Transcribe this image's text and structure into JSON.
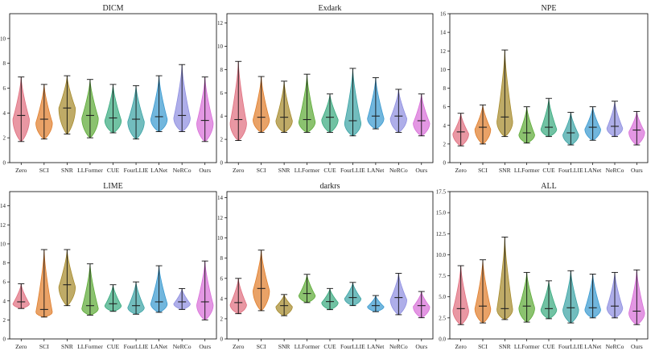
{
  "chart_data": [
    {
      "type": "violin",
      "title": "DICM",
      "ylim": [
        0,
        12
      ],
      "yticks": [
        0,
        2,
        4,
        6,
        8,
        10
      ],
      "categories": [
        "Zero",
        "SCI",
        "SNR",
        "LLFormer",
        "CUE",
        "FourLLIE",
        "LANet",
        "NeRCo",
        "Ours"
      ],
      "series": [
        {
          "name": "Zero",
          "min": 1.7,
          "max": 6.9,
          "median": 3.8,
          "peak": 3.5
        },
        {
          "name": "SCI",
          "min": 1.9,
          "max": 6.3,
          "median": 3.5,
          "peak": 3.2
        },
        {
          "name": "SNR",
          "min": 2.3,
          "max": 7.0,
          "median": 4.4,
          "peak": 4.4
        },
        {
          "name": "LLFormer",
          "min": 2.0,
          "max": 6.7,
          "median": 3.8,
          "peak": 3.6
        },
        {
          "name": "CUE",
          "min": 2.4,
          "max": 6.3,
          "median": 3.6,
          "peak": 3.4
        },
        {
          "name": "FourLLIE",
          "min": 1.9,
          "max": 6.2,
          "median": 3.5,
          "peak": 3.3
        },
        {
          "name": "LANet",
          "min": 2.5,
          "max": 7.0,
          "median": 3.7,
          "peak": 3.5
        },
        {
          "name": "NeRCo",
          "min": 2.5,
          "max": 7.9,
          "median": 3.8,
          "peak": 3.6
        },
        {
          "name": "Ours",
          "min": 1.7,
          "max": 6.9,
          "median": 3.4,
          "peak": 3.2
        }
      ]
    },
    {
      "type": "violin",
      "title": "Exdark",
      "ylim": [
        0,
        12.8
      ],
      "yticks": [
        0,
        2,
        4,
        6,
        8,
        10,
        12
      ],
      "categories": [
        "Zero",
        "SCI",
        "SNR",
        "LLFormer",
        "CUE",
        "FourLLIE",
        "LANet",
        "NeRCo",
        "Ours"
      ],
      "series": [
        {
          "name": "Zero",
          "min": 1.9,
          "max": 8.7,
          "median": 3.7,
          "peak": 3.4
        },
        {
          "name": "SCI",
          "min": 2.6,
          "max": 7.4,
          "median": 3.9,
          "peak": 3.7
        },
        {
          "name": "SNR",
          "min": 2.6,
          "max": 7.0,
          "median": 3.9,
          "peak": 3.6
        },
        {
          "name": "LLFormer",
          "min": 2.6,
          "max": 7.6,
          "median": 3.7,
          "peak": 3.5
        },
        {
          "name": "CUE",
          "min": 2.6,
          "max": 5.9,
          "median": 3.9,
          "peak": 3.7
        },
        {
          "name": "FourLLIE",
          "min": 2.3,
          "max": 8.1,
          "median": 3.6,
          "peak": 3.4
        },
        {
          "name": "LANet",
          "min": 2.9,
          "max": 7.3,
          "median": 4.0,
          "peak": 3.8
        },
        {
          "name": "NeRCo",
          "min": 2.6,
          "max": 6.3,
          "median": 4.0,
          "peak": 3.8
        },
        {
          "name": "Ours",
          "min": 2.3,
          "max": 5.9,
          "median": 3.6,
          "peak": 3.4
        }
      ]
    },
    {
      "type": "violin",
      "title": "NPE",
      "ylim": [
        0,
        16
      ],
      "yticks": [
        0,
        2,
        4,
        6,
        8,
        10,
        12,
        14,
        16
      ],
      "categories": [
        "Zero",
        "SCI",
        "SNR",
        "LLFormer",
        "CUE",
        "FourLLIE",
        "LANet",
        "NeRCo",
        "Ours"
      ],
      "series": [
        {
          "name": "Zero",
          "min": 1.8,
          "max": 5.3,
          "median": 3.3,
          "peak": 3.1
        },
        {
          "name": "SCI",
          "min": 2.0,
          "max": 6.2,
          "median": 3.8,
          "peak": 3.6
        },
        {
          "name": "SNR",
          "min": 2.8,
          "max": 12.1,
          "median": 4.9,
          "peak": 4.4
        },
        {
          "name": "LLFormer",
          "min": 2.1,
          "max": 6.0,
          "median": 3.2,
          "peak": 3.0
        },
        {
          "name": "CUE",
          "min": 2.8,
          "max": 6.9,
          "median": 3.8,
          "peak": 3.6
        },
        {
          "name": "FourLLIE",
          "min": 1.9,
          "max": 5.4,
          "median": 3.2,
          "peak": 3.0
        },
        {
          "name": "LANet",
          "min": 2.4,
          "max": 6.0,
          "median": 3.8,
          "peak": 3.6
        },
        {
          "name": "NeRCo",
          "min": 2.8,
          "max": 6.6,
          "median": 3.9,
          "peak": 3.7
        },
        {
          "name": "Ours",
          "min": 1.9,
          "max": 5.5,
          "median": 3.5,
          "peak": 3.3
        }
      ]
    },
    {
      "type": "violin",
      "title": "LIME",
      "ylim": [
        0,
        15.5
      ],
      "yticks": [
        0,
        2,
        4,
        6,
        8,
        10,
        12,
        14
      ],
      "categories": [
        "Zero",
        "SCI",
        "SNR",
        "LLFormer",
        "CUE",
        "FourLLIE",
        "LANet",
        "NeRCo",
        "Ours"
      ],
      "series": [
        {
          "name": "Zero",
          "min": 3.2,
          "max": 5.8,
          "median": 3.9,
          "peak": 3.7
        },
        {
          "name": "SCI",
          "min": 2.3,
          "max": 9.4,
          "median": 3.1,
          "peak": 2.8
        },
        {
          "name": "SNR",
          "min": 3.5,
          "max": 9.4,
          "median": 5.7,
          "peak": 5.5
        },
        {
          "name": "LLFormer",
          "min": 2.5,
          "max": 7.9,
          "median": 3.5,
          "peak": 3.2
        },
        {
          "name": "CUE",
          "min": 2.9,
          "max": 5.7,
          "median": 3.7,
          "peak": 3.5
        },
        {
          "name": "FourLLIE",
          "min": 2.6,
          "max": 6.0,
          "median": 3.5,
          "peak": 3.3
        },
        {
          "name": "LANet",
          "min": 2.8,
          "max": 7.7,
          "median": 3.9,
          "peak": 3.7
        },
        {
          "name": "NeRCo",
          "min": 3.1,
          "max": 5.3,
          "median": 3.9,
          "peak": 3.7
        },
        {
          "name": "Ours",
          "min": 2.0,
          "max": 8.2,
          "median": 3.9,
          "peak": 3.6
        }
      ]
    },
    {
      "type": "violin",
      "title": "darkrs",
      "ylim": [
        0,
        14.6
      ],
      "yticks": [
        0,
        2,
        4,
        6,
        8,
        10,
        12,
        14
      ],
      "categories": [
        "Zero",
        "SCI",
        "SNR",
        "LLFormer",
        "CUE",
        "FourLLIE",
        "LANet",
        "NeRCo",
        "Ours"
      ],
      "series": [
        {
          "name": "Zero",
          "min": 2.5,
          "max": 6.0,
          "median": 3.6,
          "peak": 3.4
        },
        {
          "name": "SCI",
          "min": 2.8,
          "max": 8.8,
          "median": 5.0,
          "peak": 4.8
        },
        {
          "name": "SNR",
          "min": 2.3,
          "max": 4.4,
          "median": 3.3,
          "peak": 3.2
        },
        {
          "name": "LLFormer",
          "min": 3.6,
          "max": 6.4,
          "median": 4.5,
          "peak": 4.3
        },
        {
          "name": "CUE",
          "min": 2.9,
          "max": 5.0,
          "median": 3.7,
          "peak": 3.6
        },
        {
          "name": "FourLLIE",
          "min": 3.3,
          "max": 5.6,
          "median": 4.1,
          "peak": 4.0
        },
        {
          "name": "LANet",
          "min": 2.7,
          "max": 4.3,
          "median": 3.3,
          "peak": 3.2
        },
        {
          "name": "NeRCo",
          "min": 2.4,
          "max": 6.5,
          "median": 4.1,
          "peak": 3.9
        },
        {
          "name": "Ours",
          "min": 2.1,
          "max": 4.7,
          "median": 3.3,
          "peak": 3.2
        }
      ]
    },
    {
      "type": "violin",
      "title": "ALL",
      "ylim": [
        0,
        17.5
      ],
      "yticks": [
        0.0,
        2.5,
        5.0,
        7.5,
        10.0,
        12.5,
        15.0,
        17.5
      ],
      "ytick_labels": [
        "0.0",
        "2.5",
        "5.0",
        "7.5",
        "10.0",
        "12.5",
        "15.0",
        "17.5"
      ],
      "categories": [
        "Zero",
        "SCI",
        "SNR",
        "LLFormer",
        "CUE",
        "FourLLIE",
        "LANet",
        "NeRCo",
        "Ours"
      ],
      "series": [
        {
          "name": "Zero",
          "min": 1.7,
          "max": 8.7,
          "median": 3.6,
          "peak": 3.4
        },
        {
          "name": "SCI",
          "min": 1.9,
          "max": 9.4,
          "median": 3.9,
          "peak": 3.6
        },
        {
          "name": "SNR",
          "min": 2.3,
          "max": 12.1,
          "median": 3.6,
          "peak": 3.5
        },
        {
          "name": "LLFormer",
          "min": 2.0,
          "max": 7.9,
          "median": 3.9,
          "peak": 3.7
        },
        {
          "name": "CUE",
          "min": 2.4,
          "max": 6.9,
          "median": 3.6,
          "peak": 3.5
        },
        {
          "name": "FourLLIE",
          "min": 1.9,
          "max": 8.1,
          "median": 3.7,
          "peak": 3.5
        },
        {
          "name": "LANet",
          "min": 2.5,
          "max": 7.7,
          "median": 3.7,
          "peak": 3.5
        },
        {
          "name": "NeRCo",
          "min": 2.5,
          "max": 7.9,
          "median": 3.9,
          "peak": 3.7
        },
        {
          "name": "Ours",
          "min": 1.7,
          "max": 8.2,
          "median": 3.3,
          "peak": 3.1
        }
      ]
    }
  ],
  "colors": [
    "#e06f7f",
    "#e07e2c",
    "#a68a2c",
    "#5eab38",
    "#3aaa80",
    "#3ba3a5",
    "#3a9ad0",
    "#8f8fe0",
    "#d86fd8"
  ],
  "median_color": "#222222",
  "whisker_color": "#111111"
}
